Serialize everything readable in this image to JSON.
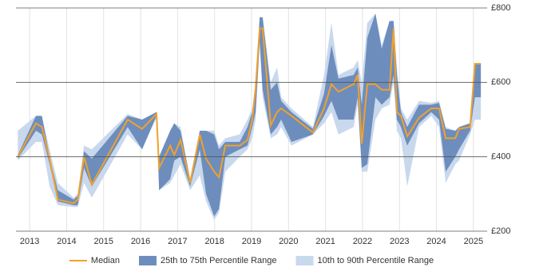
{
  "chart_data": {
    "type": "line",
    "x": [
      2012.68,
      2013.17,
      2013.33,
      2013.54,
      2013.76,
      2014.19,
      2014.3,
      2014.47,
      2014.68,
      2015.65,
      2016.04,
      2016.43,
      2016.5,
      2016.8,
      2016.91,
      2017.08,
      2017.34,
      2017.6,
      2017.77,
      2017.99,
      2018.12,
      2018.29,
      2018.68,
      2018.89,
      2019.02,
      2019.11,
      2019.22,
      2019.3,
      2019.52,
      2019.69,
      2019.8,
      2020.08,
      2020.66,
      2020.96,
      2021.16,
      2021.35,
      2021.76,
      2021.87,
      2021.98,
      2022.13,
      2022.35,
      2022.52,
      2022.73,
      2022.84,
      2022.93,
      2023.04,
      2023.21,
      2023.53,
      2023.86,
      2024.07,
      2024.25,
      2024.51,
      2024.61,
      2024.91,
      2025.04,
      2025.2
    ],
    "series": [
      {
        "name": "Median",
        "color": "#f0a12c",
        "values": [
          400,
          490,
          480,
          395,
          285,
          275,
          285,
          400,
          325,
          500,
          475,
          515,
          370,
          430,
          405,
          445,
          330,
          460,
          395,
          360,
          345,
          430,
          430,
          445,
          500,
          585,
          745,
          745,
          485,
          520,
          530,
          510,
          465,
          530,
          595,
          575,
          595,
          620,
          435,
          595,
          595,
          580,
          580,
          745,
          520,
          510,
          455,
          505,
          530,
          530,
          450,
          450,
          475,
          480,
          650,
          650
        ]
      },
      {
        "name": "25th to 75th Percentile Range",
        "color": "#6d8dbd",
        "low": [
          395,
          470,
          460,
          380,
          280,
          270,
          270,
          370,
          320,
          480,
          420,
          510,
          310,
          340,
          390,
          400,
          320,
          420,
          300,
          240,
          260,
          400,
          420,
          430,
          480,
          520,
          710,
          580,
          460,
          480,
          500,
          440,
          460,
          510,
          550,
          500,
          500,
          560,
          370,
          380,
          560,
          540,
          560,
          620,
          500,
          480,
          430,
          490,
          520,
          500,
          360,
          400,
          420,
          470,
          560,
          560
        ],
        "high": [
          405,
          510,
          510,
          400,
          310,
          285,
          295,
          415,
          395,
          510,
          500,
          520,
          400,
          470,
          490,
          470,
          340,
          470,
          470,
          460,
          420,
          440,
          440,
          480,
          520,
          600,
          775,
          775,
          580,
          600,
          550,
          520,
          475,
          570,
          700,
          610,
          620,
          640,
          540,
          720,
          785,
          690,
          765,
          765,
          620,
          520,
          480,
          540,
          540,
          545,
          475,
          470,
          480,
          490,
          650,
          650
        ]
      },
      {
        "name": "10th to 90th Percentile Range",
        "color": "#c8d8ed",
        "low": [
          390,
          440,
          440,
          320,
          270,
          265,
          265,
          330,
          290,
          460,
          420,
          505,
          310,
          330,
          350,
          380,
          310,
          350,
          280,
          230,
          250,
          360,
          400,
          420,
          450,
          500,
          700,
          560,
          450,
          460,
          480,
          430,
          460,
          490,
          520,
          460,
          480,
          540,
          360,
          360,
          500,
          530,
          540,
          600,
          470,
          450,
          320,
          480,
          510,
          480,
          330,
          380,
          390,
          460,
          500,
          500
        ],
        "high": [
          470,
          510,
          510,
          420,
          330,
          290,
          300,
          430,
          420,
          515,
          500,
          520,
          400,
          470,
          490,
          480,
          340,
          470,
          470,
          470,
          430,
          450,
          460,
          500,
          530,
          600,
          775,
          775,
          600,
          640,
          560,
          530,
          480,
          620,
          760,
          620,
          640,
          660,
          600,
          760,
          785,
          700,
          765,
          765,
          640,
          530,
          500,
          550,
          545,
          550,
          480,
          470,
          480,
          490,
          650,
          650
        ]
      }
    ],
    "xlim": [
      2012.63,
      2025.37
    ],
    "xticks": [
      2013,
      2014,
      2015,
      2016,
      2017,
      2018,
      2019,
      2020,
      2021,
      2022,
      2023,
      2024,
      2025
    ],
    "ylim": [
      200,
      800
    ],
    "yticks": [
      {
        "value": 200,
        "label": "£200"
      },
      {
        "value": 400,
        "label": "£400"
      },
      {
        "value": 600,
        "label": "£600"
      },
      {
        "value": 800,
        "label": "£800"
      }
    ],
    "grid": true,
    "legend": "bottom"
  }
}
